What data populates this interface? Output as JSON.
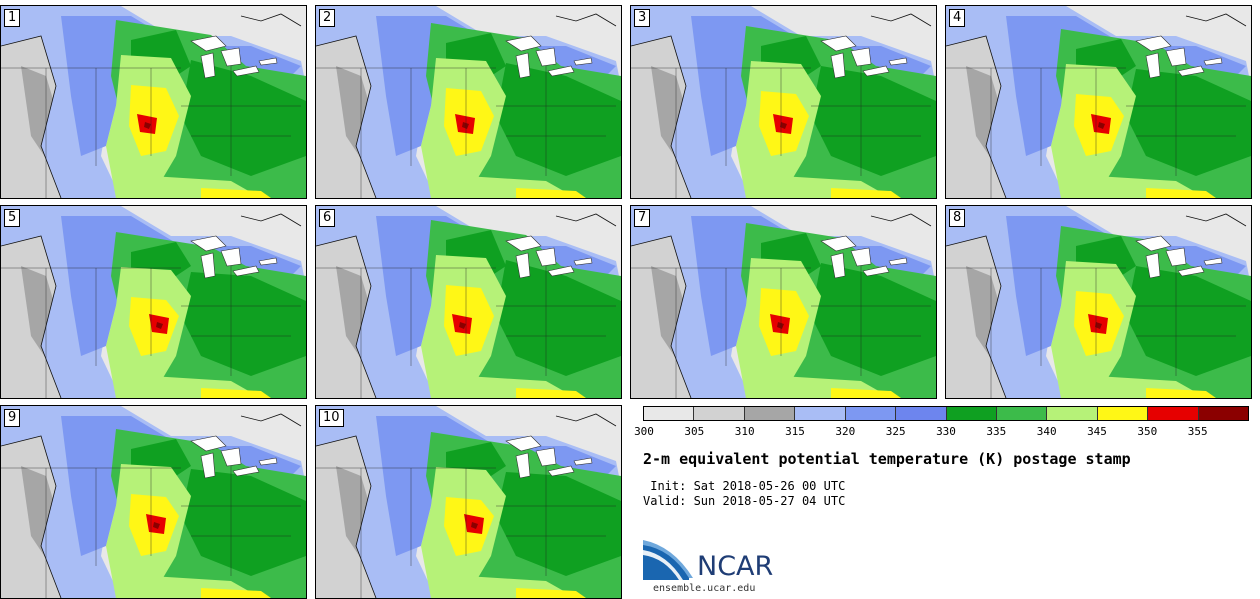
{
  "panels": [
    "1",
    "2",
    "3",
    "4",
    "5",
    "6",
    "7",
    "8",
    "9",
    "10"
  ],
  "colorbar": {
    "colors": [
      "#e8e8e8",
      "#d2d2d2",
      "#a6a6a6",
      "#a9bdf5",
      "#7d98f2",
      "#6d85ee",
      "#0fa021",
      "#3cbb4a",
      "#b6f278",
      "#fff716",
      "#e60000",
      "#8b0000"
    ],
    "ticks": [
      "300",
      "305",
      "310",
      "315",
      "320",
      "325",
      "330",
      "335",
      "340",
      "345",
      "350",
      "355"
    ]
  },
  "title": "2-m equivalent potential temperature (K) postage stamp",
  "init": " Init: Sat 2018-05-26 00 UTC",
  "valid": "Valid: Sun 2018-05-27 04 UTC",
  "logo": {
    "text": "NCAR",
    "brand_color": "#1f3d75"
  },
  "site": "ensemble.ucar.edu"
}
